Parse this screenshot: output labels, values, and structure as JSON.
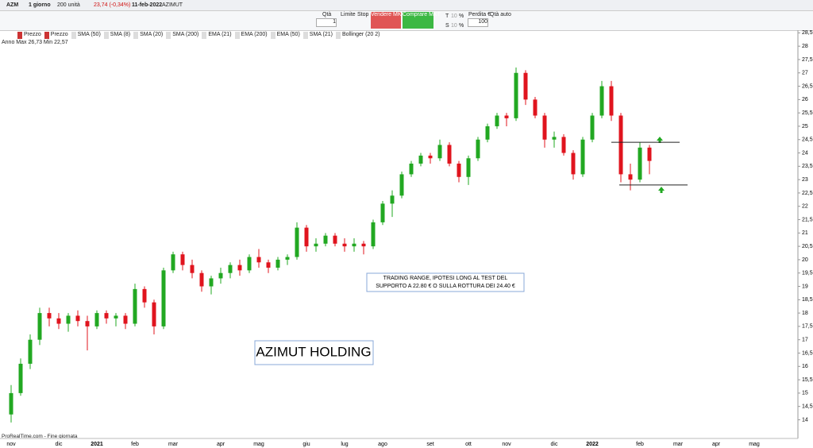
{
  "toolbar": {
    "symbol": "AZM",
    "period": "1 giorno",
    "units": "200 unità",
    "price": "23,74 (-0,34%)",
    "date": "11-feb-2022",
    "name": "AZIMUT",
    "qty_label": "Qtà",
    "qty": "1",
    "limit": "Limite",
    "stop": "Stop",
    "sell": "Vendere MKT",
    "buy": "Comprare MKT",
    "t_label": "T",
    "t_value": "10",
    "t_unit": "%",
    "s_label": "S",
    "s_value": "10",
    "s_unit": "%",
    "loss_label": "Perdita €",
    "loss": "100",
    "auto_qty": "Qtà auto"
  },
  "indicators": [
    "Prezzo",
    "Prezzo",
    "SMA (50)",
    "SMA (8)",
    "SMA (20)",
    "SMA (200)",
    "EMA (21)",
    "EMA (200)",
    "EMA (50)",
    "SMA (21)",
    "Bollinger (20 2)"
  ],
  "year_info": "Anno Max 26,73 Min 22,57",
  "footer": "ProRealTime.com - Fine giornata",
  "chart_data": {
    "type": "candlestick",
    "categories": [
      "nov",
      null,
      null,
      null,
      null,
      "dic",
      null,
      null,
      null,
      "2021",
      null,
      null,
      null,
      "feb",
      null,
      null,
      null,
      "mar",
      null,
      null,
      null,
      null,
      "apr",
      null,
      null,
      null,
      "mag",
      null,
      null,
      null,
      null,
      "giu",
      null,
      null,
      null,
      "lug",
      null,
      null,
      null,
      "ago",
      null,
      null,
      null,
      null,
      "set",
      null,
      null,
      null,
      "ott",
      null,
      null,
      null,
      "nov",
      null,
      null,
      null,
      null,
      "dic",
      null,
      null,
      null,
      "2022",
      null,
      null,
      null,
      null,
      "feb",
      null,
      null,
      null,
      "mar",
      null,
      null,
      null,
      "apr",
      null,
      null,
      null,
      "mag",
      null
    ],
    "open": [
      14.2,
      15.0,
      16.1,
      17.0,
      18.0,
      17.8,
      17.6,
      17.9,
      17.7,
      17.5,
      18.0,
      17.8,
      17.9,
      17.6,
      18.9,
      18.4,
      17.5,
      19.6,
      20.2,
      19.8,
      19.5,
      19.0,
      19.3,
      19.5,
      19.8,
      19.6,
      20.1,
      19.9,
      19.7,
      20.0,
      20.1,
      21.2,
      20.5,
      20.6,
      20.9,
      20.6,
      20.5,
      20.6,
      20.5,
      21.4,
      22.1,
      22.4,
      23.2,
      23.6,
      23.9,
      23.8,
      24.3,
      23.6,
      23.1,
      23.8,
      24.5,
      25.0,
      25.4,
      25.3,
      27.0,
      26.0,
      25.4,
      24.5,
      24.6,
      24.0,
      23.2,
      24.5,
      25.4,
      26.5,
      25.4,
      23.2,
      23.0,
      24.2,
      null,
      null,
      null,
      null,
      null,
      null,
      null,
      null,
      null,
      null,
      null,
      null
    ],
    "high": [
      15.3,
      16.3,
      17.2,
      18.2,
      18.2,
      18.0,
      18.0,
      18.1,
      17.9,
      18.1,
      18.1,
      18.0,
      18.0,
      19.1,
      19.0,
      18.5,
      19.7,
      20.3,
      20.3,
      20.0,
      19.6,
      19.4,
      19.7,
      19.9,
      20.0,
      20.2,
      20.4,
      20.0,
      20.1,
      20.2,
      21.4,
      21.3,
      20.8,
      21.0,
      21.0,
      20.8,
      20.8,
      20.7,
      21.5,
      22.2,
      22.6,
      23.3,
      23.7,
      24.0,
      24.0,
      24.5,
      24.4,
      23.7,
      23.9,
      24.6,
      25.1,
      25.5,
      25.5,
      27.2,
      27.1,
      26.1,
      25.5,
      24.8,
      24.7,
      24.1,
      24.6,
      25.5,
      26.7,
      26.7,
      25.5,
      23.6,
      24.4,
      24.3,
      null,
      null,
      null,
      null,
      null,
      null,
      null,
      null,
      null,
      null,
      null,
      null
    ],
    "low": [
      13.9,
      14.9,
      15.9,
      16.8,
      17.5,
      17.4,
      17.3,
      17.5,
      16.6,
      17.4,
      17.6,
      17.5,
      17.4,
      17.5,
      18.2,
      17.2,
      17.4,
      19.5,
      19.6,
      19.3,
      18.8,
      18.7,
      19.1,
      19.3,
      19.4,
      19.5,
      19.7,
      19.5,
      19.6,
      19.8,
      20.0,
      20.3,
      20.3,
      20.5,
      20.5,
      20.3,
      20.3,
      20.2,
      20.4,
      21.3,
      21.6,
      22.3,
      23.1,
      23.5,
      23.6,
      23.7,
      23.5,
      22.9,
      22.8,
      23.7,
      24.4,
      24.9,
      25.0,
      25.2,
      25.8,
      25.3,
      24.2,
      24.2,
      23.9,
      23.0,
      23.1,
      24.4,
      25.3,
      25.2,
      22.9,
      22.6,
      22.9,
      23.2,
      null,
      null,
      null,
      null,
      null,
      null,
      null,
      null,
      null,
      null,
      null,
      null
    ],
    "close": [
      15.0,
      16.1,
      17.0,
      18.0,
      17.8,
      17.6,
      17.9,
      17.7,
      17.5,
      18.0,
      17.8,
      17.9,
      17.6,
      18.9,
      18.4,
      17.5,
      19.6,
      20.2,
      19.8,
      19.5,
      19.0,
      19.3,
      19.5,
      19.8,
      19.6,
      20.1,
      19.9,
      19.7,
      20.0,
      20.1,
      21.2,
      20.5,
      20.6,
      20.9,
      20.6,
      20.5,
      20.6,
      20.5,
      21.4,
      22.1,
      22.4,
      23.2,
      23.6,
      23.9,
      23.8,
      24.3,
      23.6,
      23.1,
      23.8,
      24.5,
      25.0,
      25.4,
      25.3,
      27.0,
      26.0,
      25.4,
      24.5,
      24.6,
      24.0,
      23.2,
      24.5,
      25.4,
      26.5,
      25.4,
      23.2,
      23.0,
      24.2,
      23.7,
      null,
      null,
      null,
      null,
      null,
      null,
      null,
      null,
      null,
      null,
      null,
      null
    ],
    "up_color": "#22a822",
    "down_color": "#e0141e",
    "ylim": [
      13.3,
      28.6
    ],
    "yticks": [
      14,
      {
        "value": 14.5,
        "label": "14,5"
      },
      15,
      {
        "value": 15.5,
        "label": "15,5"
      },
      16,
      {
        "value": 16.5,
        "label": "16,5"
      },
      17,
      {
        "value": 17.5,
        "label": "17,5"
      },
      18,
      {
        "value": 18.5,
        "label": "18,5"
      },
      19,
      {
        "value": 19.5,
        "label": "19,5"
      },
      20,
      {
        "value": 20.5,
        "label": "20,5"
      },
      21,
      {
        "value": 21.5,
        "label": "21,5"
      },
      22,
      {
        "value": 22.5,
        "label": "22,5"
      },
      23,
      {
        "value": 23.5,
        "label": "23,5"
      },
      24,
      {
        "value": 24.5,
        "label": "24,5"
      },
      25,
      {
        "value": 25.5,
        "label": "25,5"
      },
      26,
      {
        "value": 26.5,
        "label": "26,5"
      },
      27,
      {
        "value": 27.5,
        "label": "27,5"
      },
      28,
      {
        "value": 28.5,
        "label": "28,5"
      }
    ],
    "levels": [
      24.4,
      22.8
    ],
    "annotation": [
      "TRADING RANGE, IPOTESI LONG AL TEST DEL",
      "SUPPORTO A 22.80 € O SULLA ROTTURA DEI 24.40 €"
    ],
    "label": "AZIMUT HOLDING"
  }
}
